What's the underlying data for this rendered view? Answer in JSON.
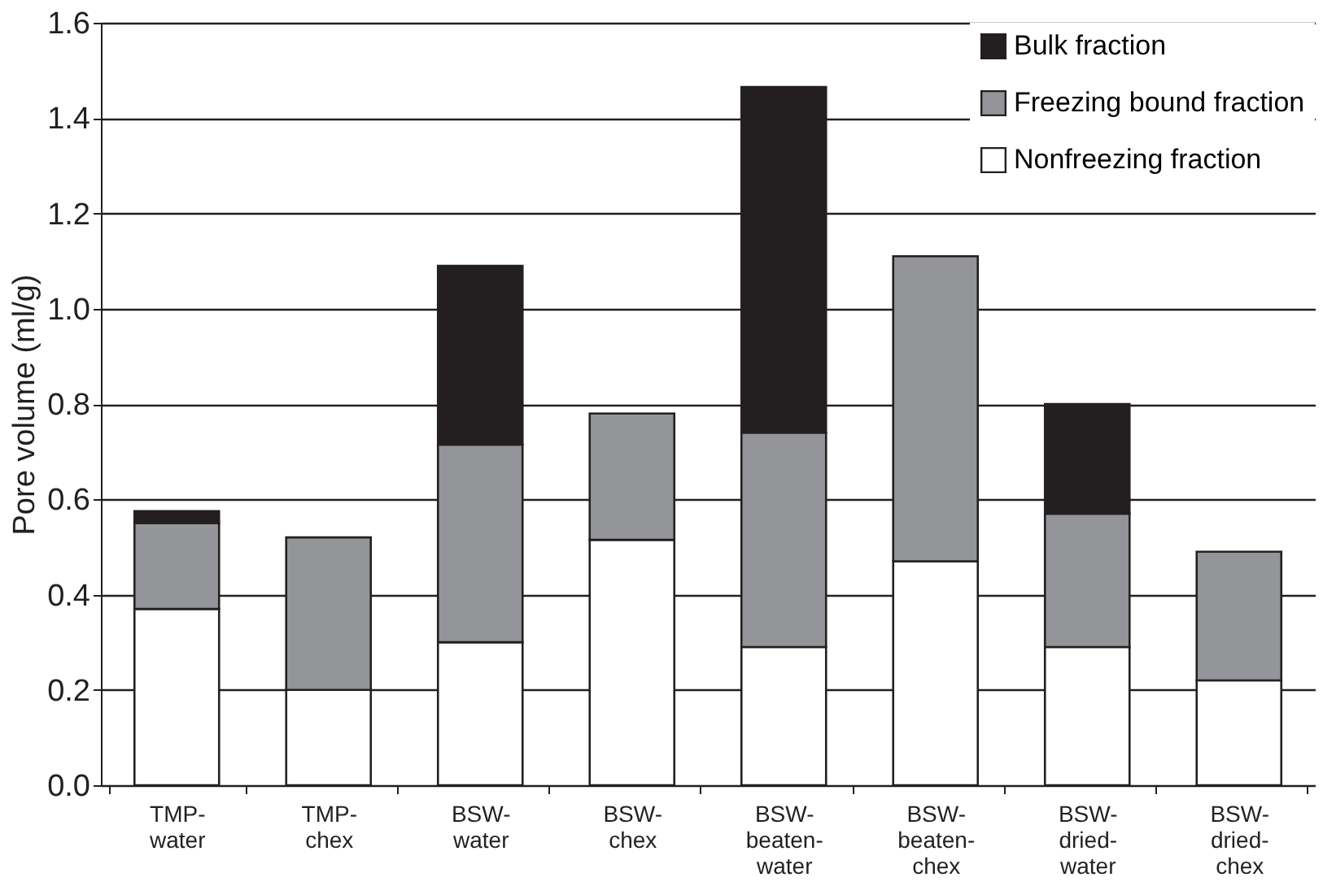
{
  "chart_data": {
    "type": "bar",
    "stacked": true,
    "ylabel": "Pore volume (ml/g)",
    "categories": [
      "TMP-water",
      "TMP-chex",
      "BSW-water",
      "BSW-chex",
      "BSW-beaten-water",
      "BSW-beaten-chex",
      "BSW-dried-water",
      "BSW-dried-chex"
    ],
    "series": [
      {
        "name": "Nonfreezing fraction",
        "color": "#ffffff",
        "values": [
          0.37,
          0.2,
          0.3,
          0.515,
          0.29,
          0.47,
          0.29,
          0.22
        ]
      },
      {
        "name": "Freezing bound fraction",
        "color": "#939598",
        "values": [
          0.18,
          0.32,
          0.415,
          0.265,
          0.45,
          0.64,
          0.28,
          0.27
        ]
      },
      {
        "name": "Bulk fraction",
        "color": "#231f20",
        "values": [
          0.025,
          null,
          0.375,
          null,
          0.725,
          null,
          0.23,
          null
        ]
      }
    ],
    "ylim": [
      0,
      1.6
    ],
    "yticks": [
      {
        "value": 0,
        "label": "0.0"
      },
      0.2,
      0.4,
      0.6,
      0.8,
      {
        "value": 1,
        "label": "1.0"
      },
      1.2,
      1.4,
      1.6
    ],
    "grid": "y",
    "legend": "top right"
  }
}
